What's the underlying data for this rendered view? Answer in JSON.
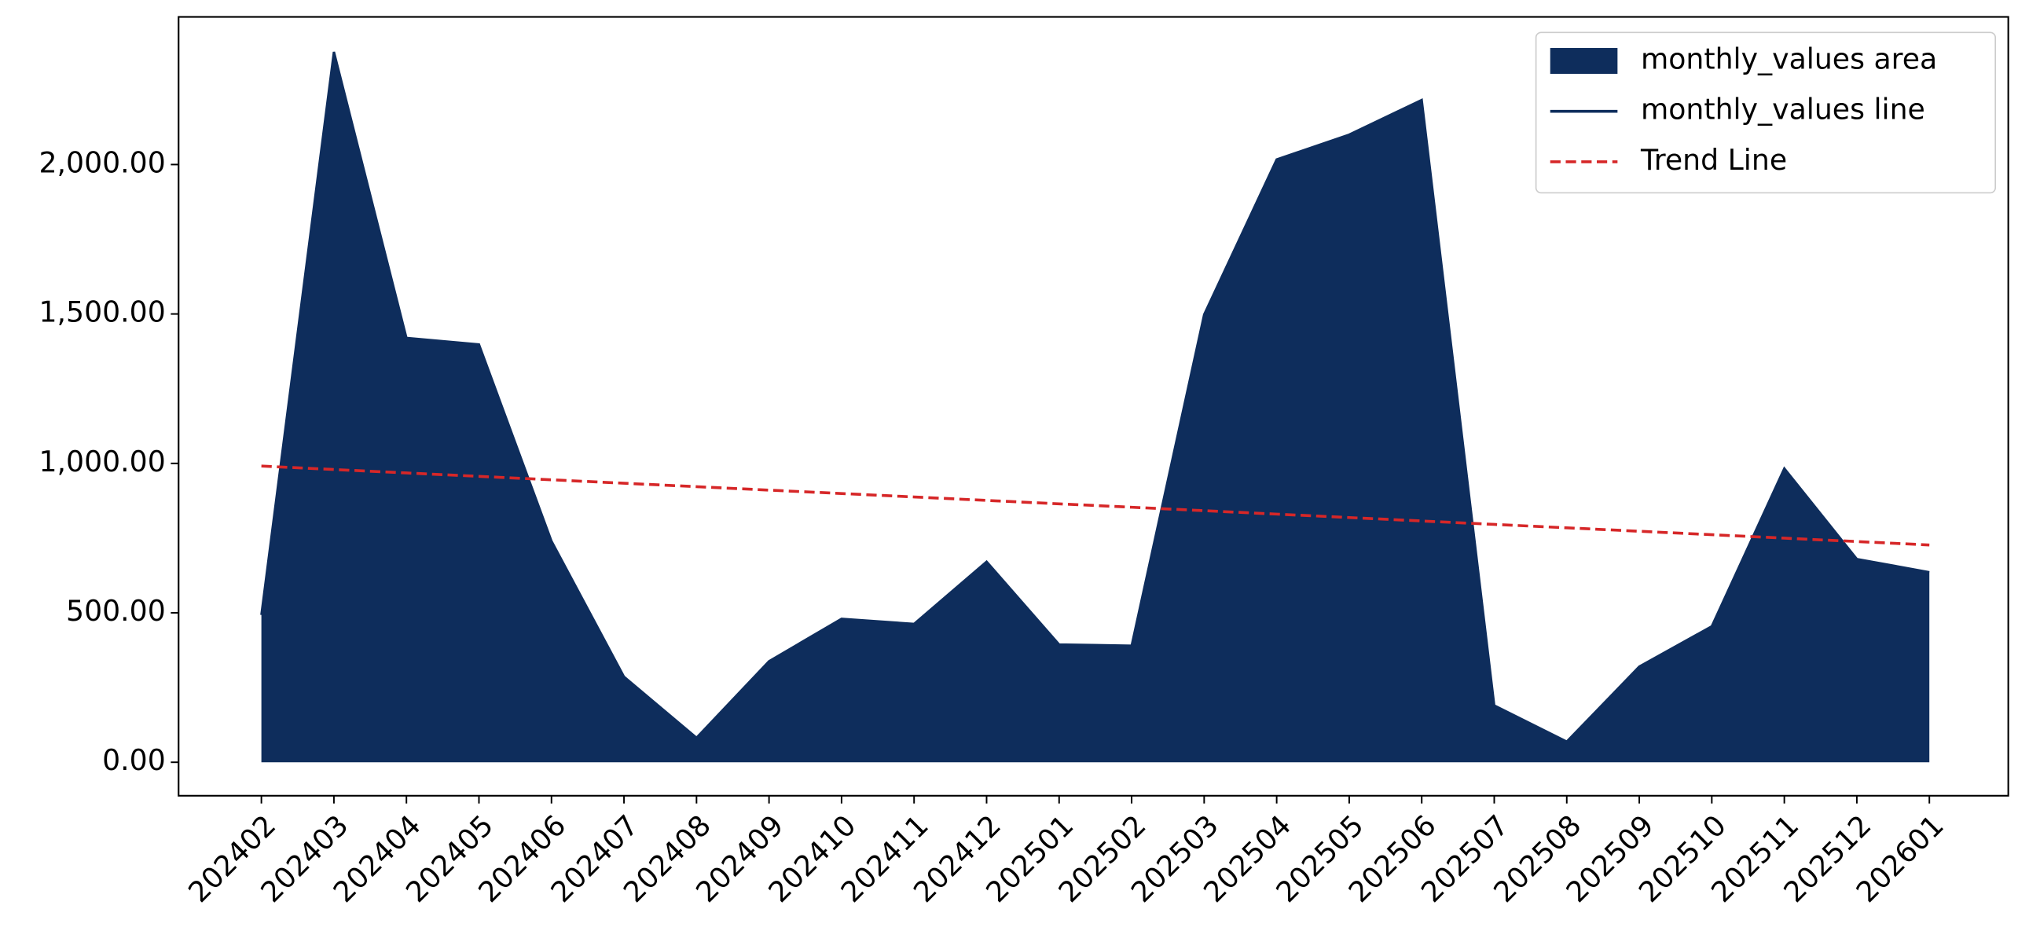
{
  "chart_data": {
    "type": "area",
    "categories": [
      "202402",
      "202403",
      "202404",
      "202405",
      "202406",
      "202407",
      "202408",
      "202409",
      "202410",
      "202411",
      "202412",
      "202501",
      "202502",
      "202503",
      "202504",
      "202505",
      "202506",
      "202507",
      "202508",
      "202509",
      "202510",
      "202511",
      "202512",
      "202601"
    ],
    "series": [
      {
        "name": "monthly_values area",
        "color": "#0e2d5c",
        "values": [
          493,
          2377,
          1420,
          1398,
          740,
          286,
          82,
          338,
          480,
          463,
          671,
          394,
          390,
          1498,
          2017,
          2100,
          2216,
          190,
          69,
          320,
          455,
          983,
          680,
          636
        ]
      },
      {
        "name": "monthly_values line",
        "color": "#0e2d5c",
        "values": [
          493,
          2377,
          1420,
          1398,
          740,
          286,
          82,
          338,
          480,
          463,
          671,
          394,
          390,
          1498,
          2017,
          2100,
          2216,
          190,
          69,
          320,
          455,
          983,
          680,
          636
        ]
      },
      {
        "name": "Trend Line",
        "color": "#d62728",
        "dashed": true,
        "values": [
          991,
          979.5,
          968,
          956.6,
          945.1,
          933.6,
          922.1,
          910.6,
          899.2,
          887.7,
          876.2,
          864.7,
          853.3,
          841.8,
          830.3,
          818.8,
          807.3,
          795.9,
          784.4,
          772.9,
          761.4,
          749.9,
          738.5,
          727
        ]
      }
    ],
    "ylim": [
      -112,
      2494
    ],
    "yticks": [
      {
        "value": 0,
        "label": "0.00"
      },
      {
        "value": 500,
        "label": "500.00"
      },
      {
        "value": 1000,
        "label": "1,000.00"
      },
      {
        "value": 1500,
        "label": "1,500.00"
      },
      {
        "value": 2000,
        "label": "2,000.00"
      }
    ],
    "legend": "upper right"
  }
}
